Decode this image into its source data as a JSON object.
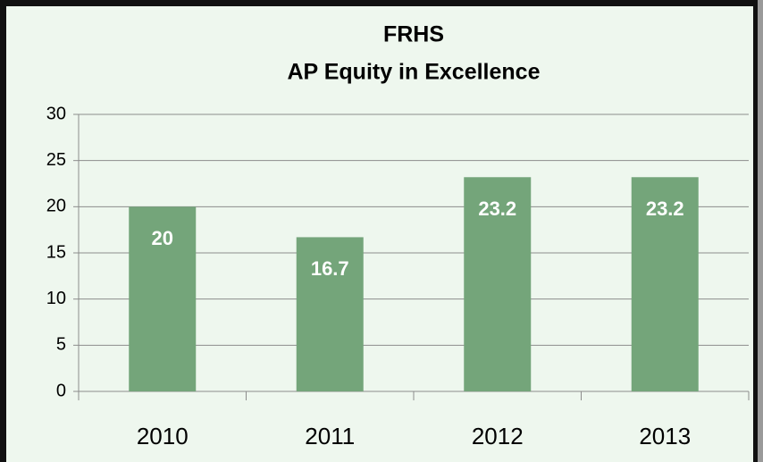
{
  "chart_data": {
    "type": "bar",
    "title": "FRHS",
    "subtitle": "AP Equity in Excellence",
    "categories": [
      "2010",
      "2011",
      "2012",
      "2013"
    ],
    "values": [
      20,
      16.7,
      23.2,
      23.2
    ],
    "color": "#74a57a",
    "ylim": [
      0,
      30
    ],
    "yticks": [
      0,
      5,
      10,
      15,
      20,
      25,
      30
    ],
    "grid": true
  }
}
